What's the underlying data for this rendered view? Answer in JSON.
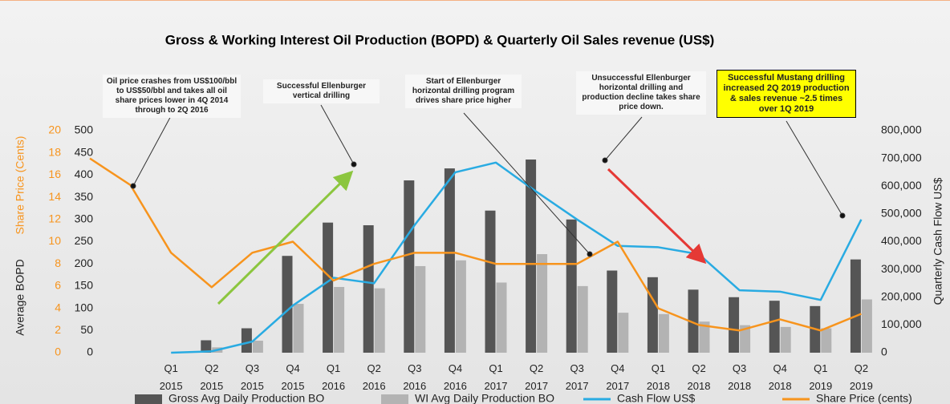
{
  "chart_data": {
    "type": "combo",
    "title": "Gross & Working Interest Oil Production (BOPD) & Quarterly Oil Sales revenue (US$)",
    "categories": [
      null,
      null,
      "Q1 2015",
      "Q2 2015",
      "Q3 2015",
      "Q4 2015",
      "Q1 2016",
      "Q2 2016",
      "Q3 2016",
      "Q4 2016",
      "Q1 2017",
      "Q2 2017",
      "Q3 2017",
      "Q4 2017",
      "Q1 2018",
      "Q2 2018",
      "Q3 2018",
      "Q4 2018",
      "Q1 2019",
      "Q2 2019"
    ],
    "series": [
      {
        "name": "Gross Avg Daily Production BO",
        "type": "bar",
        "color": "#555555",
        "values": [
          null,
          null,
          null,
          28,
          55,
          218,
          293,
          287,
          388,
          415,
          320,
          435,
          300,
          185,
          170,
          142,
          125,
          117,
          105,
          210
        ]
      },
      {
        "name": "WI Avg Daily Production BO",
        "type": "bar",
        "color": "#b3b3b3",
        "values": [
          null,
          null,
          null,
          12,
          27,
          110,
          148,
          145,
          195,
          208,
          158,
          222,
          150,
          90,
          87,
          70,
          62,
          58,
          55,
          120
        ]
      },
      {
        "name": "Cash Flow US$",
        "type": "line",
        "axis": "y2",
        "color": "#29abe2",
        "values": [
          null,
          null,
          0,
          5000,
          40000,
          170000,
          270000,
          250000,
          460000,
          650000,
          685000,
          580000,
          480000,
          385000,
          380000,
          355000,
          225000,
          220000,
          190000,
          480000
        ]
      },
      {
        "name": "Share Price (cents)",
        "type": "line",
        "axis": "y3",
        "color": "#f7941d",
        "values": [
          17.5,
          15.1,
          9,
          5.9,
          9,
          10,
          6.5,
          8,
          9,
          9,
          8,
          8,
          8,
          10,
          4,
          2.5,
          2,
          3,
          2,
          3.5
        ]
      }
    ],
    "ylabel": "Average BOPD",
    "ylim": [
      0,
      500
    ],
    "yticks": [
      0,
      50,
      100,
      150,
      200,
      250,
      300,
      350,
      400,
      450,
      500
    ],
    "y2label": "Quarterly  Cash Flow US$",
    "y2lim": [
      0,
      800000
    ],
    "y2ticks": [
      0,
      {
        "value": 100000,
        "label": "100,000"
      },
      {
        "value": 200000,
        "label": "200,000"
      },
      {
        "value": 300000,
        "label": "300,000"
      },
      {
        "value": 400000,
        "label": "400,000"
      },
      {
        "value": 500000,
        "label": "500,000"
      },
      {
        "value": 600000,
        "label": "600,000"
      },
      {
        "value": 700000,
        "label": "700,000"
      },
      {
        "value": 800000,
        "label": "800,000"
      }
    ],
    "y3label": "Share Price (Cents)",
    "y3lim": [
      0,
      20
    ],
    "y3ticks": [
      0,
      2,
      4,
      6,
      8,
      10,
      12,
      14,
      16,
      18,
      20
    ],
    "annotations": [
      "Oil price crashes from US$100/bbl to US$50/bbl and takes all oil share prices lower in 4Q 2014 through to 2Q 2016",
      "Successful Ellenburger vertical drilling",
      "Start of Ellenburger horizontal drilling program drives share price higher",
      "Unsuccessful Ellenburger horizontal drilling and production decline takes share price down.",
      "Successful Mustang drilling increased 2Q 2019 production & sales revenue ~2.5 times over 1Q 2019"
    ]
  }
}
